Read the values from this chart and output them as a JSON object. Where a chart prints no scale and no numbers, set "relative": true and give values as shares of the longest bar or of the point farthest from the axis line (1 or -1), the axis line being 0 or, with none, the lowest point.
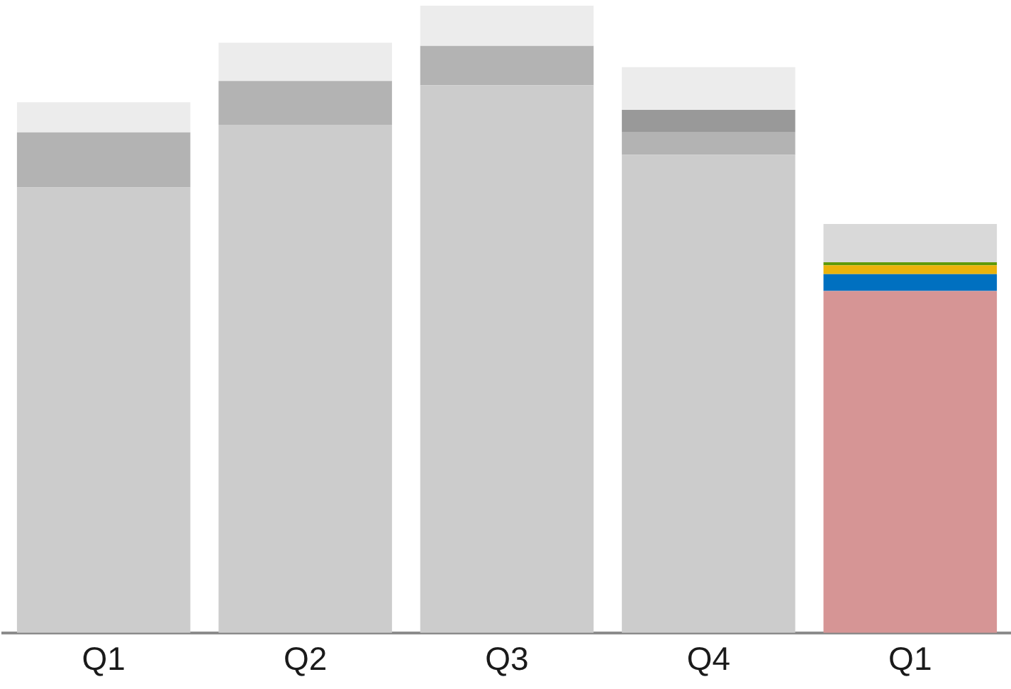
{
  "chart_data": {
    "type": "bar",
    "stacked": true,
    "relative": true,
    "categories": [
      "Q1",
      "Q2",
      "Q3",
      "Q4",
      "Q1"
    ],
    "legend": false,
    "grid": false,
    "series": [
      {
        "colors": [
          "#cccccc",
          "#cccccc",
          "#cccccc",
          "#cccccc",
          "#d69595"
        ],
        "values": [
          0.71,
          0.81,
          0.873,
          0.762,
          0.545
        ]
      },
      {
        "colors": [
          "#b3b3b3",
          "#b3b3b3",
          "#b3b3b3",
          "#b3b3b3",
          "#0070c0"
        ],
        "values": [
          0.088,
          0.07,
          0.063,
          0.036,
          0.027
        ]
      },
      {
        "colors": [
          "#999999",
          "#999999",
          "#999999",
          "#999999",
          "#ebb30b"
        ],
        "values": [
          null,
          null,
          null,
          0.036,
          0.014
        ]
      },
      {
        "colors": [
          "#5f9a0a",
          "#5f9a0a",
          "#5f9a0a",
          "#5f9a0a",
          "#5f9a0a"
        ],
        "values": [
          null,
          null,
          null,
          null,
          0.005
        ]
      },
      {
        "colors": [
          "#ececec",
          "#ececec",
          "#ececec",
          "#ececec",
          "#d9d9d9"
        ],
        "values": [
          0.048,
          0.061,
          0.064,
          0.068,
          0.061
        ]
      }
    ]
  }
}
